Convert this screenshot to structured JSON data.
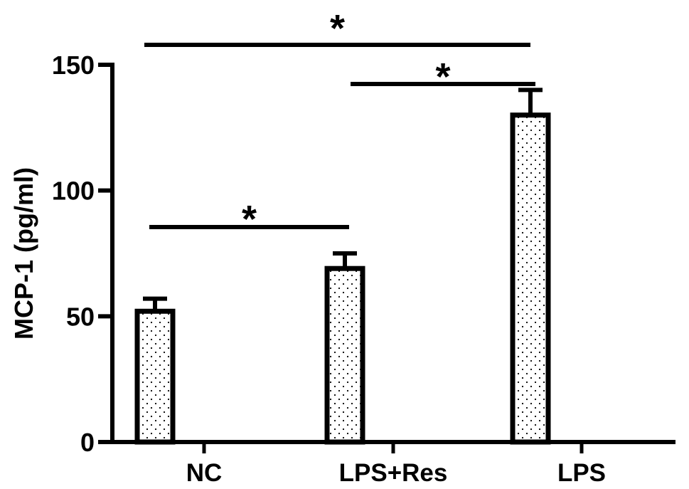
{
  "chart_data": {
    "type": "bar",
    "title": "",
    "xlabel": "",
    "ylabel": "MCP-1 (pg/ml)",
    "categories": [
      "NC",
      "LPS+Res",
      "LPS"
    ],
    "values": [
      52,
      69,
      130
    ],
    "errors": [
      5,
      6,
      10
    ],
    "ylim": [
      0,
      150
    ],
    "yticks": [
      "0",
      "50",
      "100",
      "150"
    ],
    "bar_fill": "dotted pattern",
    "comparisons": [
      {
        "from": "NC",
        "to": "LPS+Res",
        "label": "*"
      },
      {
        "from": "LPS+Res",
        "to": "LPS",
        "label": "*"
      },
      {
        "from": "NC",
        "to": "LPS",
        "label": "*"
      }
    ]
  }
}
